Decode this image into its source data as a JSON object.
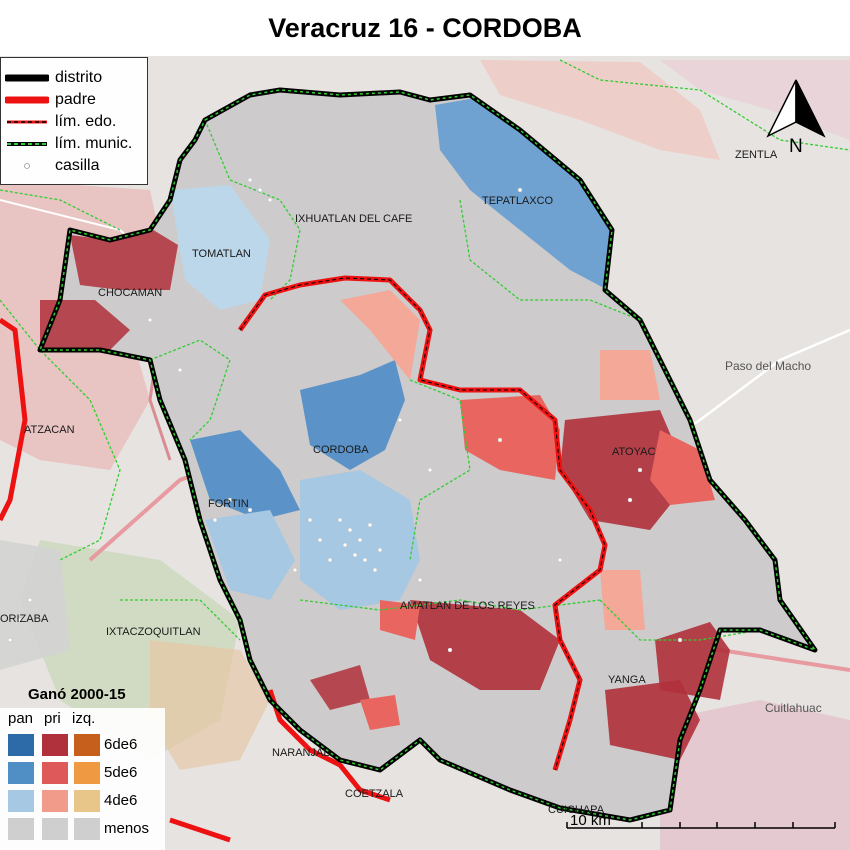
{
  "title": "Veracruz 16 - CORDOBA",
  "legend": {
    "items": [
      {
        "label": "distrito"
      },
      {
        "label": "padre"
      },
      {
        "label": "lím. edo."
      },
      {
        "label": "lím. munic."
      },
      {
        "label": "casilla"
      }
    ]
  },
  "results_legend": {
    "title": "Ganó 2000-15",
    "columns": [
      "pan",
      "pri",
      "izq."
    ],
    "levels": [
      "6de6",
      "5de6",
      "4de6",
      "menos"
    ]
  },
  "municipalities": [
    "IXHUATLAN DEL CAFE",
    "TEPATLAXCO",
    "TOMATLAN",
    "CHOCAMAN",
    "CORDOBA",
    "FORTIN",
    "ATOYAC",
    "AMATLAN DE LOS REYES",
    "YANGA",
    "NARANJAL",
    "COETZALA",
    "CUICHAPA",
    "ATZACAN",
    "ORIZABA",
    "IXTACZOQUITLAN",
    "ZENTLA"
  ],
  "basemap_labels": [
    "Paso del Macho",
    "Cuitlahuac"
  ],
  "scale_label": "10 km",
  "north_label": "N",
  "colors": {
    "pan": [
      "#2c6ba8",
      "#4f8fc6",
      "#a6c8e2",
      "#cfcfcf"
    ],
    "pri": [
      "#b0303b",
      "#de5a5a",
      "#f19b8a",
      "#cfcfcf"
    ],
    "izq": [
      "#c65f1c",
      "#ef9a42",
      "#e8c68a",
      "#cfcfcf"
    ],
    "distrito": "#000000",
    "padre": "#ee1111",
    "munic": "#33cc33"
  }
}
